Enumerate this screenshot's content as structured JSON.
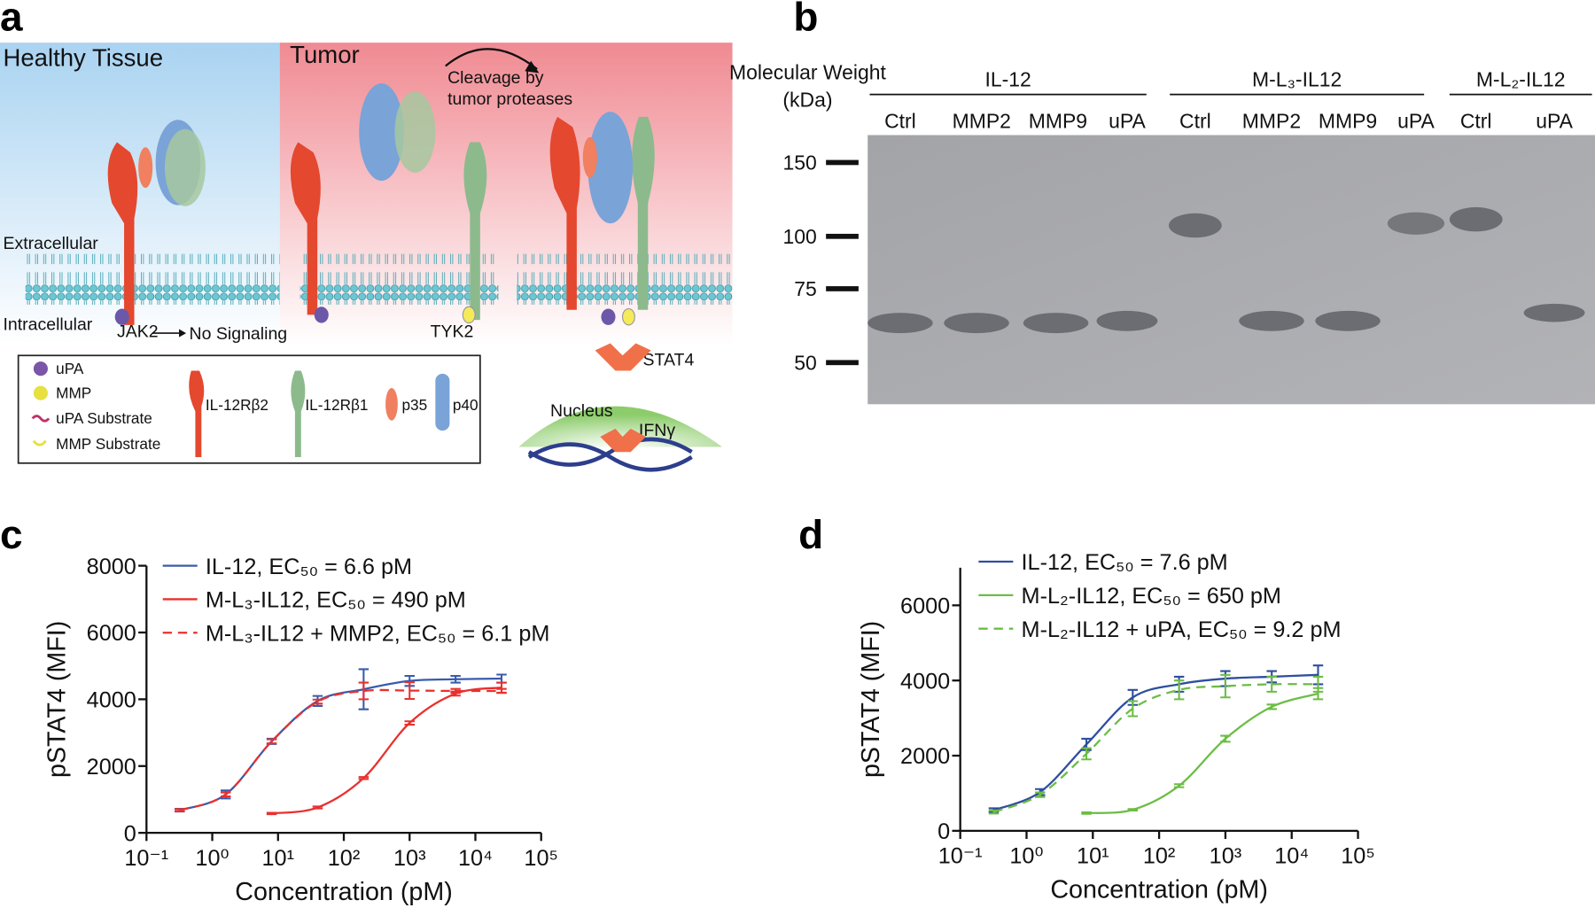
{
  "panels": {
    "a": "a",
    "b": "b",
    "c": "c",
    "d": "d"
  },
  "diagram": {
    "healthy": "Healthy Tissue",
    "tumor": "Tumor",
    "cleavage": [
      "Cleavage by",
      "tumor proteases"
    ],
    "extracellular": "Extracellular",
    "intracellular": "Intracellular",
    "jak2": "JAK2",
    "no_signaling": "No Signaling",
    "tyk2": "TYK2",
    "stat4": "STAT4",
    "nucleus": "Nucleus",
    "ifng": "IFNγ",
    "legend": [
      "uPA",
      "MMP",
      "uPA Substrate",
      "MMP Substrate",
      "IL-12Rβ2",
      "IL-12Rβ1",
      "p35",
      "p40"
    ]
  },
  "gel": {
    "mw_title": [
      "Molecular Weight",
      "(kDa)"
    ],
    "groups": [
      "IL-12",
      "M-L₃-IL12",
      "M-L₂-IL12"
    ],
    "lanes": [
      "Ctrl",
      "MMP2",
      "MMP9",
      "uPA",
      "Ctrl",
      "MMP2",
      "MMP9",
      "uPA",
      "Ctrl",
      "uPA"
    ],
    "markers": [
      150,
      100,
      75,
      50
    ]
  },
  "chart_data": [
    {
      "type": "line",
      "x_label": "Concentration (pM)",
      "y_label": "pSTAT4 (MFI)",
      "log_x": true,
      "xlim": [
        0.1,
        100000
      ],
      "xticks": [
        {
          "value": 0.1,
          "label": "10⁻¹"
        },
        {
          "value": 1,
          "label": "10⁰"
        },
        {
          "value": 10,
          "label": "10¹"
        },
        {
          "value": 100,
          "label": "10²"
        },
        {
          "value": 1000,
          "label": "10³"
        },
        {
          "value": 10000,
          "label": "10⁴"
        },
        {
          "value": 100000,
          "label": "10⁵"
        }
      ],
      "ylim": [
        0,
        8000
      ],
      "yticks": [
        0,
        2000,
        4000,
        6000,
        8000
      ],
      "series": [
        {
          "name": "IL-12, EC₅₀ = 6.6 pM",
          "color": "#3a5bab",
          "dashed": false,
          "x": [
            0.32,
            1.6,
            8,
            40,
            200,
            1000,
            5000,
            25000
          ],
          "values": [
            680,
            1150,
            2740,
            3950,
            4300,
            4550,
            4600,
            4620
          ],
          "errors": [
            40,
            120,
            80,
            150,
            600,
            150,
            100,
            120
          ]
        },
        {
          "name": "M-L₃-IL12, EC₅₀ = 490 pM",
          "color": "#e8312f",
          "dashed": false,
          "x": [
            8,
            40,
            200,
            1000,
            5000,
            25000
          ],
          "values": [
            580,
            760,
            1640,
            3290,
            4170,
            4350
          ],
          "errors": [
            20,
            30,
            30,
            50,
            60,
            150
          ]
        },
        {
          "name": "M-L₃-IL12 + MMP2, EC₅₀ = 6.1 pM",
          "color": "#e8312f",
          "dashed": true,
          "x": [
            0.32,
            1.6,
            8,
            40,
            200,
            1000,
            5000,
            25000
          ],
          "values": [
            680,
            1150,
            2740,
            3930,
            4250,
            4260,
            4250,
            4250
          ],
          "errors": [
            30,
            60,
            60,
            60,
            250,
            250,
            60,
            60
          ]
        }
      ]
    },
    {
      "type": "line",
      "x_label": "Concentration (pM)",
      "y_label": "pSTAT4 (MFI)",
      "log_x": true,
      "xlim": [
        0.1,
        100000
      ],
      "xticks": [
        {
          "value": 0.1,
          "label": "10⁻¹"
        },
        {
          "value": 1,
          "label": "10⁰"
        },
        {
          "value": 10,
          "label": "10¹"
        },
        {
          "value": 100,
          "label": "10²"
        },
        {
          "value": 1000,
          "label": "10³"
        },
        {
          "value": 10000,
          "label": "10⁴"
        },
        {
          "value": 100000,
          "label": "10⁵"
        }
      ],
      "ylim": [
        0,
        7000
      ],
      "yticks": [
        0,
        2000,
        4000,
        6000
      ],
      "series": [
        {
          "name": "IL-12, EC₅₀ = 7.6 pM",
          "color": "#2f4e9e",
          "dashed": false,
          "x": [
            0.32,
            1.6,
            8,
            40,
            200,
            1000,
            5000,
            25000
          ],
          "values": [
            550,
            1030,
            2300,
            3550,
            3900,
            4050,
            4100,
            4150
          ],
          "errors": [
            50,
            80,
            150,
            200,
            200,
            200,
            150,
            250
          ]
        },
        {
          "name": "M-L₂-IL12, EC₅₀ = 650 pM",
          "color": "#6cbd45",
          "dashed": false,
          "x": [
            8,
            40,
            200,
            1000,
            5000,
            25000
          ],
          "values": [
            470,
            560,
            1200,
            2450,
            3300,
            3650
          ],
          "errors": [
            20,
            20,
            40,
            80,
            60,
            150
          ]
        },
        {
          "name": "M-L₂-IL12 + uPA, EC₅₀ = 9.2 pM",
          "color": "#6cbd45",
          "dashed": true,
          "x": [
            0.32,
            1.6,
            8,
            40,
            200,
            1000,
            5000,
            25000
          ],
          "values": [
            500,
            960,
            2050,
            3250,
            3750,
            3850,
            3900,
            3900
          ],
          "errors": [
            40,
            60,
            150,
            200,
            250,
            300,
            200,
            200
          ]
        }
      ]
    }
  ]
}
